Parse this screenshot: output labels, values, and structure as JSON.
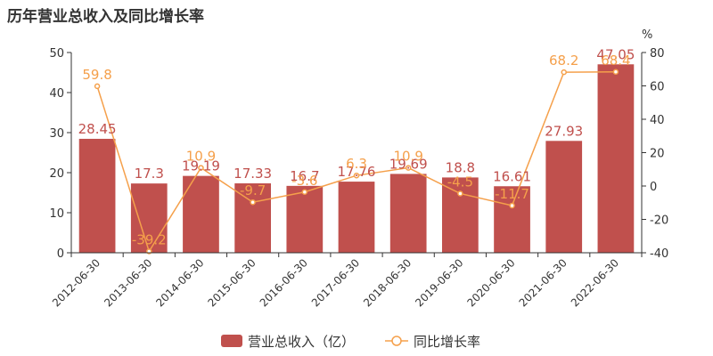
{
  "chart_data": {
    "type": "bar",
    "title": "历年营业总收入及同比增长率",
    "categories": [
      "2012-06-30",
      "2013-06-30",
      "2014-06-30",
      "2015-06-30",
      "2016-06-30",
      "2017-06-30",
      "2018-06-30",
      "2019-06-30",
      "2020-06-30",
      "2021-06-30",
      "2022-06-30"
    ],
    "series": [
      {
        "name": "营业总收入（亿）",
        "type": "bar",
        "axis": "left",
        "color": "#c0504d",
        "values": [
          28.45,
          17.3,
          19.19,
          17.33,
          16.7,
          17.76,
          19.69,
          18.8,
          16.61,
          27.93,
          47.05
        ]
      },
      {
        "name": "同比增长率",
        "type": "line",
        "axis": "right",
        "color": "#f5a04b",
        "values": [
          59.8,
          -39.2,
          10.9,
          -9.7,
          -3.6,
          6.3,
          10.9,
          -4.5,
          -11.7,
          68.2,
          68.4
        ]
      }
    ],
    "y_left": {
      "min": 0,
      "max": 50,
      "ticks": [
        0,
        10,
        20,
        30,
        40,
        50
      ]
    },
    "y_right": {
      "min": -40,
      "max": 80,
      "ticks": [
        -40,
        -20,
        0,
        20,
        40,
        60,
        80
      ],
      "unit_label": "%"
    },
    "legend_position": "bottom-center",
    "grid": false
  }
}
